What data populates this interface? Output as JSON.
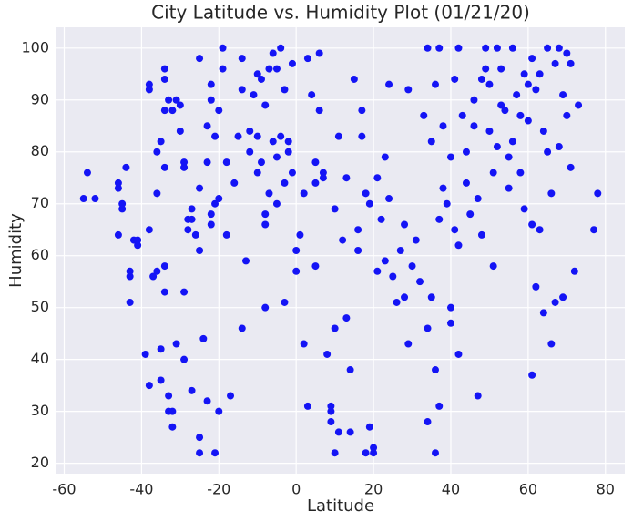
{
  "chart_data": {
    "type": "scatter",
    "title": "City Latitude vs.  Humidity Plot (01/21/20)",
    "x_label": "Latitude",
    "y_label": "Humidity",
    "color": "#1414f5",
    "grid": true,
    "xlim": [
      -62,
      85
    ],
    "ylim": [
      18,
      104
    ],
    "xticks": [
      -60,
      -40,
      -20,
      0,
      20,
      40,
      60,
      80
    ],
    "yticks": [
      20,
      30,
      40,
      50,
      60,
      70,
      80,
      90,
      100
    ],
    "x": [
      -55,
      -54,
      -52,
      -46,
      -46,
      -45,
      -46,
      -45,
      -44,
      -43,
      -43,
      -43,
      -42,
      -41,
      -41,
      -39,
      -38,
      -38,
      -38,
      -38,
      -37,
      -36,
      -36,
      -36,
      -35,
      -35,
      -35,
      -34,
      -34,
      -34,
      -34,
      -34,
      -34,
      -33,
      -33,
      -33,
      -32,
      -32,
      -32,
      -31,
      -31,
      -30,
      -30,
      -29,
      -29,
      -29,
      -29,
      -28,
      -28,
      -27,
      -27,
      -27,
      -26,
      -25,
      -25,
      -25,
      -25,
      -25,
      -24,
      -23,
      -23,
      -23,
      -22,
      -22,
      -22,
      -22,
      -21,
      -21,
      -21,
      -20,
      -20,
      -20,
      -19,
      -19,
      -18,
      -18,
      -17,
      -16,
      -15,
      -14,
      -14,
      -14,
      -13,
      -12,
      -12,
      -11,
      -10,
      -10,
      -10,
      -9,
      -9,
      -8,
      -8,
      -8,
      -8,
      -7,
      -7,
      -6,
      -6,
      -5,
      -5,
      -5,
      -4,
      -4,
      -3,
      -3,
      -3,
      -2,
      -2,
      -1,
      -1,
      0,
      0,
      1,
      2,
      2,
      3,
      3,
      4,
      5,
      5,
      5,
      6,
      6,
      7,
      7,
      8,
      9,
      9,
      9,
      10,
      10,
      10,
      11,
      11,
      12,
      13,
      13,
      14,
      14,
      15,
      16,
      16,
      17,
      17,
      18,
      18,
      19,
      19,
      20,
      20,
      21,
      21,
      22,
      23,
      23,
      24,
      24,
      25,
      26,
      27,
      28,
      28,
      29,
      29,
      30,
      31,
      32,
      33,
      34,
      34,
      34,
      35,
      35,
      36,
      36,
      36,
      37,
      37,
      37,
      38,
      38,
      39,
      40,
      40,
      40,
      41,
      41,
      42,
      42,
      42,
      43,
      44,
      44,
      45,
      46,
      46,
      47,
      47,
      48,
      48,
      49,
      49,
      50,
      50,
      51,
      51,
      52,
      52,
      53,
      53,
      54,
      55,
      55,
      56,
      56,
      57,
      58,
      58,
      59,
      59,
      60,
      60,
      61,
      61,
      61,
      62,
      62,
      63,
      63,
      64,
      64,
      65,
      65,
      66,
      66,
      67,
      67,
      68,
      68,
      69,
      69,
      70,
      70,
      71,
      71,
      72,
      73,
      77,
      78
    ],
    "values": [
      71,
      76,
      71,
      73,
      74,
      69,
      64,
      70,
      77,
      56,
      57,
      51,
      63,
      63,
      62,
      41,
      65,
      93,
      92,
      35,
      56,
      57,
      72,
      80,
      36,
      42,
      82,
      88,
      96,
      94,
      77,
      53,
      58,
      30,
      33,
      90,
      27,
      30,
      88,
      43,
      90,
      84,
      89,
      78,
      77,
      53,
      40,
      65,
      67,
      69,
      67,
      34,
      64,
      25,
      22,
      61,
      73,
      98,
      44,
      32,
      78,
      85,
      90,
      93,
      68,
      66,
      22,
      70,
      83,
      88,
      71,
      30,
      100,
      96,
      64,
      78,
      33,
      74,
      83,
      98,
      92,
      46,
      59,
      84,
      80,
      91,
      83,
      95,
      76,
      94,
      78,
      66,
      89,
      68,
      50,
      72,
      96,
      99,
      82,
      96,
      79,
      70,
      83,
      100,
      92,
      74,
      51,
      82,
      80,
      97,
      76,
      61,
      57,
      64,
      72,
      43,
      31,
      98,
      91,
      78,
      74,
      58,
      99,
      88,
      75,
      76,
      41,
      31,
      30,
      28,
      22,
      46,
      69,
      83,
      26,
      63,
      48,
      75,
      38,
      26,
      94,
      61,
      65,
      88,
      83,
      22,
      72,
      70,
      27,
      22,
      23,
      75,
      57,
      67,
      59,
      79,
      71,
      93,
      56,
      51,
      61,
      52,
      66,
      92,
      43,
      58,
      63,
      55,
      87,
      28,
      46,
      100,
      82,
      52,
      93,
      38,
      22,
      100,
      67,
      31,
      85,
      73,
      70,
      79,
      47,
      50,
      65,
      94,
      62,
      41,
      100,
      87,
      80,
      74,
      68,
      90,
      85,
      71,
      33,
      94,
      64,
      100,
      96,
      93,
      84,
      76,
      58,
      100,
      81,
      96,
      89,
      88,
      73,
      79,
      100,
      82,
      91,
      87,
      76,
      95,
      69,
      93,
      86,
      98,
      37,
      66,
      92,
      54,
      95,
      65,
      84,
      49,
      100,
      80,
      72,
      43,
      97,
      51,
      81,
      100,
      91,
      52,
      99,
      87,
      77,
      97,
      57,
      89,
      65,
      72
    ]
  }
}
